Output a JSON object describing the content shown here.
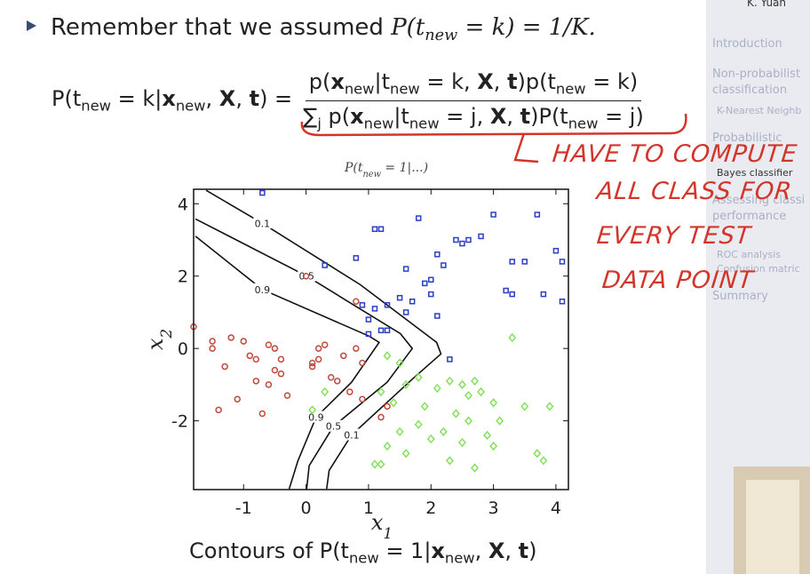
{
  "slide": {
    "bullet": [
      "Remember that we assumed ",
      "P(t",
      {
        "sub": "new"
      },
      " = k) = 1/K."
    ],
    "equation": {
      "lhs": [
        "P(t",
        {
          "sub": "new"
        },
        " = k|",
        {
          "b": "x"
        },
        {
          "sub": "new"
        },
        ", ",
        {
          "b": "X"
        },
        ", ",
        {
          "b": "t"
        },
        ") ="
      ],
      "numerator": [
        "p(",
        {
          "b": "x"
        },
        {
          "sub": "new"
        },
        "|t",
        {
          "sub": "new"
        },
        " = k, ",
        {
          "b": "X"
        },
        ", ",
        {
          "b": "t"
        },
        ")p(t",
        {
          "sub": "new"
        },
        " = k)"
      ],
      "denominator": [
        "∑",
        {
          "sub": "j"
        },
        " p(",
        {
          "b": "x"
        },
        {
          "sub": "new"
        },
        "|t",
        {
          "sub": "new"
        },
        " = j, ",
        {
          "b": "X"
        },
        ", ",
        {
          "b": "t"
        },
        ")P(t",
        {
          "sub": "new"
        },
        " = j)"
      ]
    },
    "caption": [
      "Contours of P(t",
      {
        "sub": "new"
      },
      " = 1|",
      {
        "b": "x"
      },
      {
        "sub": "new"
      },
      ", ",
      {
        "b": "X"
      },
      ", ",
      {
        "b": "t"
      },
      ")"
    ],
    "annotation": [
      "HAVE TO COMPUTE",
      "ALL CLASS FOR",
      "EVERY TEST",
      "DATA POINT"
    ]
  },
  "sidebar": {
    "author": "K. Yuan",
    "items": [
      "Introduction",
      "Non-probabilist",
      "classification",
      "K-Nearest Neighb",
      "Probabilistic",
      "Bayes classifier",
      "Assessing classi",
      "performance",
      "ROC analysis",
      "Confusion matric",
      "Summary"
    ]
  },
  "chart_data": {
    "type": "scatter",
    "title": [
      "P(t",
      {
        "sub": "new"
      },
      " = 1|...)"
    ],
    "xlabel": [
      "x",
      {
        "sub": "1"
      }
    ],
    "ylabel": [
      "x",
      {
        "sub": "2"
      }
    ],
    "xlim": [
      -1.8,
      4.2
    ],
    "ylim": [
      -3.9,
      4.4
    ],
    "xticks": [
      -1,
      0,
      1,
      2,
      3,
      4
    ],
    "yticks": [
      -2,
      0,
      2,
      4
    ],
    "series": [
      {
        "color": "#2b3fc4",
        "marker": "square",
        "x": [
          -0.7,
          1.1,
          1.2,
          1.8,
          2.1,
          2.4,
          2.5,
          2.6,
          2.8,
          3.0,
          3.7,
          3.3,
          3.5,
          4.0,
          4.1,
          3.2,
          3.3,
          3.8,
          4.1,
          2.2,
          2.0,
          2.0,
          1.9,
          1.6,
          1.7,
          1.5,
          1.3,
          1.1,
          0.9,
          1.0,
          1.2,
          1.3,
          1.0,
          1.6,
          2.1,
          0.8,
          0.3,
          2.3
        ],
        "y": [
          4.3,
          3.3,
          3.3,
          3.6,
          2.6,
          3.0,
          2.9,
          3.0,
          3.1,
          3.7,
          3.7,
          2.4,
          2.4,
          2.7,
          2.4,
          1.6,
          1.5,
          1.5,
          1.3,
          2.3,
          1.9,
          1.5,
          1.8,
          2.2,
          1.3,
          1.4,
          1.2,
          1.1,
          1.2,
          0.8,
          0.5,
          0.5,
          0.4,
          1.0,
          0.9,
          2.5,
          2.3,
          -0.3
        ]
      },
      {
        "color": "#c0493b",
        "marker": "circle",
        "x": [
          -1.8,
          -1.5,
          -1.5,
          -1.2,
          -1.0,
          -1.3,
          -0.9,
          -0.8,
          -0.6,
          -0.5,
          -0.4,
          -0.5,
          -0.4,
          -0.6,
          -0.8,
          -0.3,
          -0.7,
          -1.4,
          0.1,
          0.1,
          0.2,
          0.3,
          0.4,
          0.5,
          0.6,
          0.8,
          0.9,
          0.7,
          0.9,
          0.0,
          0.8,
          -1.1,
          0.2,
          1.3,
          1.2
        ],
        "y": [
          0.6,
          0.2,
          0.0,
          0.3,
          0.2,
          -0.5,
          -0.2,
          -0.3,
          0.1,
          0.0,
          -0.3,
          -0.6,
          -0.7,
          -1.0,
          -0.9,
          -1.3,
          -1.8,
          -1.7,
          -0.5,
          -0.4,
          0.0,
          0.1,
          -0.8,
          -0.9,
          -0.2,
          0.0,
          -0.4,
          -1.2,
          -1.4,
          2.0,
          1.3,
          -1.4,
          -0.3,
          -1.6,
          -1.9
        ]
      },
      {
        "color": "#86e05e",
        "marker": "diamond",
        "x": [
          1.3,
          1.5,
          1.6,
          1.8,
          2.1,
          2.3,
          2.5,
          2.6,
          2.7,
          2.8,
          3.3,
          3.0,
          3.1,
          3.5,
          3.7,
          3.8,
          3.9,
          2.4,
          2.6,
          2.9,
          2.2,
          2.0,
          1.8,
          1.5,
          1.3,
          1.1,
          1.2,
          1.6,
          2.3,
          2.5,
          3.0,
          2.7,
          1.9,
          1.2,
          0.1,
          0.3,
          1.4
        ],
        "y": [
          -0.2,
          -0.4,
          -1.0,
          -0.8,
          -1.1,
          -0.9,
          -1.0,
          -1.3,
          -0.9,
          -1.2,
          0.3,
          -1.5,
          -2.0,
          -1.6,
          -2.9,
          -3.1,
          -1.6,
          -1.8,
          -2.0,
          -2.4,
          -2.3,
          -2.5,
          -2.1,
          -2.3,
          -2.7,
          -3.2,
          -3.2,
          -2.9,
          -3.1,
          -2.6,
          -2.7,
          -3.3,
          -1.6,
          -1.2,
          -1.7,
          -1.2,
          -1.5
        ]
      }
    ],
    "contours": [
      {
        "level": 0.1,
        "x": [
          -1.6,
          -0.7,
          0.87,
          2.09,
          2.16,
          1.73,
          0.73,
          0.37,
          0.33
        ],
        "y": [
          4.37,
          3.46,
          1.76,
          0.17,
          -0.15,
          -0.8,
          -2.39,
          -3.37,
          -3.88
        ]
      },
      {
        "level": 0.5,
        "x": [
          -1.77,
          0.01,
          1.51,
          1.7,
          1.3,
          0.44,
          0.05,
          0.01
        ],
        "y": [
          3.58,
          2.0,
          0.41,
          0.0,
          -0.93,
          -2.15,
          -3.24,
          -3.88
        ]
      },
      {
        "level": 0.9,
        "x": [
          -1.77,
          -0.7,
          1.01,
          1.17,
          0.73,
          0.16,
          -0.13,
          -0.27
        ],
        "y": [
          3.1,
          1.63,
          0.34,
          0.17,
          -0.93,
          -1.9,
          -3.1,
          -3.88
        ]
      }
    ]
  }
}
